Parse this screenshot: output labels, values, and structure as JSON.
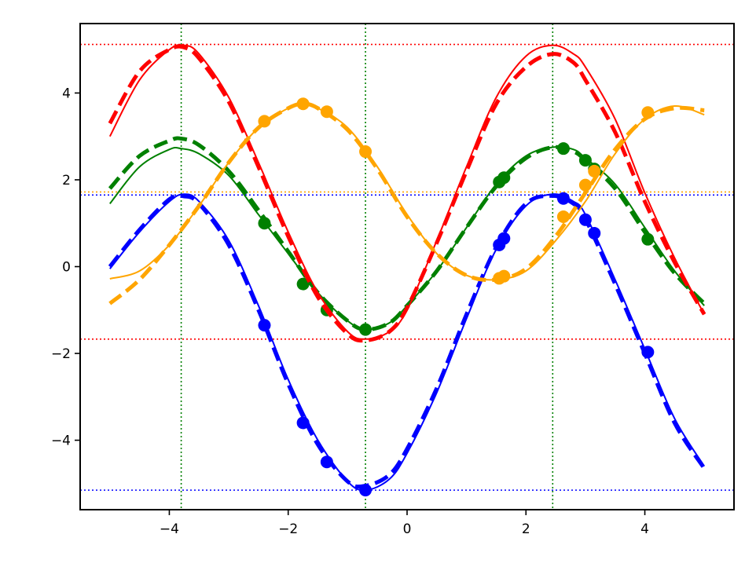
{
  "chart_data": {
    "type": "line",
    "title": "",
    "xlabel": "",
    "ylabel": "",
    "xlim": [
      -5.5,
      5.5
    ],
    "ylim": [
      -5.6,
      5.6
    ],
    "xticks": [
      -4,
      -2,
      0,
      2,
      4
    ],
    "yticks": [
      -4,
      -2,
      0,
      2,
      4
    ],
    "xtick_labels": [
      "−4",
      "−2",
      "0",
      "2",
      "4"
    ],
    "ytick_labels": [
      "−4",
      "−2",
      "0",
      "2",
      "4"
    ],
    "grid": false,
    "legend": "none",
    "curve_x_range": [
      -5,
      5
    ],
    "series": [
      {
        "color": "#0000ff",
        "smooth": [
          [
            -5.0,
            -0.05
          ],
          [
            -4.5,
            0.8
          ],
          [
            -4.0,
            1.5
          ],
          [
            -3.75,
            1.67
          ],
          [
            -3.5,
            1.5
          ],
          [
            -3.0,
            0.6
          ],
          [
            -2.5,
            -0.9
          ],
          [
            -2.0,
            -2.6
          ],
          [
            -1.5,
            -4.0
          ],
          [
            -1.0,
            -4.95
          ],
          [
            -0.7,
            -5.15
          ],
          [
            -0.3,
            -4.9
          ],
          [
            0.0,
            -4.3
          ],
          [
            0.5,
            -2.9
          ],
          [
            1.0,
            -1.2
          ],
          [
            1.5,
            0.4
          ],
          [
            2.0,
            1.4
          ],
          [
            2.45,
            1.67
          ],
          [
            2.8,
            1.5
          ],
          [
            3.0,
            1.2
          ],
          [
            3.5,
            -0.3
          ],
          [
            4.0,
            -1.9
          ],
          [
            4.5,
            -3.5
          ],
          [
            5.0,
            -4.6
          ]
        ],
        "dashed": [
          [
            -5.0,
            0.0
          ],
          [
            -4.5,
            0.85
          ],
          [
            -4.0,
            1.55
          ],
          [
            -3.75,
            1.62
          ],
          [
            -3.5,
            1.45
          ],
          [
            -3.0,
            0.5
          ],
          [
            -2.5,
            -1.0
          ],
          [
            -2.0,
            -2.7
          ],
          [
            -1.5,
            -4.1
          ],
          [
            -1.0,
            -4.95
          ],
          [
            -0.7,
            -5.05
          ],
          [
            -0.3,
            -4.8
          ],
          [
            0.0,
            -4.2
          ],
          [
            0.5,
            -2.8
          ],
          [
            1.0,
            -1.1
          ],
          [
            1.5,
            0.45
          ],
          [
            2.0,
            1.45
          ],
          [
            2.45,
            1.63
          ],
          [
            2.8,
            1.45
          ],
          [
            3.0,
            1.1
          ],
          [
            3.5,
            -0.4
          ],
          [
            4.0,
            -2.0
          ],
          [
            4.5,
            -3.6
          ],
          [
            5.0,
            -4.65
          ]
        ],
        "points": [
          [
            -2.4,
            -1.35
          ],
          [
            -1.75,
            -3.6
          ],
          [
            -1.35,
            -4.5
          ],
          [
            -0.7,
            -5.15
          ],
          [
            1.55,
            0.5
          ],
          [
            1.63,
            0.65
          ],
          [
            2.63,
            1.57
          ],
          [
            3.0,
            1.08
          ],
          [
            3.15,
            0.77
          ],
          [
            4.05,
            -1.97
          ]
        ]
      },
      {
        "color": "#008000",
        "smooth": [
          [
            -5.0,
            1.45
          ],
          [
            -4.5,
            2.3
          ],
          [
            -4.0,
            2.7
          ],
          [
            -3.8,
            2.72
          ],
          [
            -3.5,
            2.6
          ],
          [
            -3.0,
            2.1
          ],
          [
            -2.5,
            1.2
          ],
          [
            -2.0,
            0.3
          ],
          [
            -1.5,
            -0.6
          ],
          [
            -1.0,
            -1.25
          ],
          [
            -0.7,
            -1.45
          ],
          [
            -0.3,
            -1.3
          ],
          [
            0.0,
            -0.9
          ],
          [
            0.5,
            -0.1
          ],
          [
            1.0,
            0.9
          ],
          [
            1.5,
            1.9
          ],
          [
            2.0,
            2.55
          ],
          [
            2.45,
            2.75
          ],
          [
            2.8,
            2.7
          ],
          [
            3.0,
            2.5
          ],
          [
            3.5,
            1.9
          ],
          [
            4.0,
            0.9
          ],
          [
            4.5,
            -0.1
          ],
          [
            5.0,
            -0.9
          ]
        ],
        "dashed": [
          [
            -5.0,
            1.8
          ],
          [
            -4.5,
            2.55
          ],
          [
            -4.0,
            2.9
          ],
          [
            -3.8,
            2.95
          ],
          [
            -3.5,
            2.8
          ],
          [
            -3.0,
            2.2
          ],
          [
            -2.5,
            1.3
          ],
          [
            -2.0,
            0.35
          ],
          [
            -1.5,
            -0.6
          ],
          [
            -1.0,
            -1.25
          ],
          [
            -0.7,
            -1.45
          ],
          [
            -0.3,
            -1.3
          ],
          [
            0.0,
            -0.9
          ],
          [
            0.5,
            -0.1
          ],
          [
            1.0,
            0.9
          ],
          [
            1.5,
            1.85
          ],
          [
            2.0,
            2.5
          ],
          [
            2.45,
            2.75
          ],
          [
            2.8,
            2.65
          ],
          [
            3.0,
            2.45
          ],
          [
            3.5,
            1.8
          ],
          [
            4.0,
            0.8
          ],
          [
            4.5,
            -0.15
          ],
          [
            5.0,
            -0.85
          ]
        ],
        "points": [
          [
            -2.4,
            1.0
          ],
          [
            -1.75,
            -0.4
          ],
          [
            -1.35,
            -1.0
          ],
          [
            -0.7,
            -1.45
          ],
          [
            1.55,
            1.95
          ],
          [
            1.63,
            2.05
          ],
          [
            2.63,
            2.72
          ],
          [
            3.0,
            2.45
          ],
          [
            3.15,
            2.25
          ],
          [
            4.05,
            0.63
          ]
        ]
      },
      {
        "color": "#ff0000",
        "smooth": [
          [
            -5.0,
            3.0
          ],
          [
            -4.5,
            4.3
          ],
          [
            -4.0,
            5.0
          ],
          [
            -3.75,
            5.1
          ],
          [
            -3.5,
            4.9
          ],
          [
            -3.0,
            3.9
          ],
          [
            -2.5,
            2.4
          ],
          [
            -2.0,
            0.8
          ],
          [
            -1.5,
            -0.6
          ],
          [
            -1.0,
            -1.5
          ],
          [
            -0.7,
            -1.67
          ],
          [
            -0.3,
            -1.5
          ],
          [
            0.0,
            -1.0
          ],
          [
            0.5,
            0.6
          ],
          [
            1.0,
            2.3
          ],
          [
            1.5,
            3.9
          ],
          [
            2.0,
            4.85
          ],
          [
            2.45,
            5.1
          ],
          [
            2.8,
            4.9
          ],
          [
            3.0,
            4.6
          ],
          [
            3.5,
            3.4
          ],
          [
            4.0,
            1.7
          ],
          [
            4.5,
            0.2
          ],
          [
            5.0,
            -1.1
          ]
        ],
        "dashed": [
          [
            -5.0,
            3.3
          ],
          [
            -4.5,
            4.5
          ],
          [
            -4.0,
            5.0
          ],
          [
            -3.75,
            5.05
          ],
          [
            -3.5,
            4.8
          ],
          [
            -3.0,
            3.8
          ],
          [
            -2.5,
            2.3
          ],
          [
            -2.0,
            0.7
          ],
          [
            -1.5,
            -0.7
          ],
          [
            -1.0,
            -1.55
          ],
          [
            -0.7,
            -1.7
          ],
          [
            -0.3,
            -1.5
          ],
          [
            0.0,
            -0.95
          ],
          [
            0.5,
            0.55
          ],
          [
            1.0,
            2.2
          ],
          [
            1.5,
            3.75
          ],
          [
            2.0,
            4.6
          ],
          [
            2.45,
            4.9
          ],
          [
            2.8,
            4.7
          ],
          [
            3.0,
            4.3
          ],
          [
            3.5,
            3.1
          ],
          [
            4.0,
            1.5
          ],
          [
            4.5,
            0.1
          ],
          [
            5.0,
            -1.1
          ]
        ],
        "points": []
      },
      {
        "color": "#ffa500",
        "smooth": [
          [
            -5.0,
            -0.28
          ],
          [
            -4.5,
            -0.1
          ],
          [
            -4.0,
            0.5
          ],
          [
            -3.5,
            1.4
          ],
          [
            -3.0,
            2.4
          ],
          [
            -2.5,
            3.2
          ],
          [
            -2.0,
            3.65
          ],
          [
            -1.75,
            3.73
          ],
          [
            -1.5,
            3.65
          ],
          [
            -1.0,
            3.2
          ],
          [
            -0.5,
            2.3
          ],
          [
            0.0,
            1.2
          ],
          [
            0.5,
            0.3
          ],
          [
            1.0,
            -0.2
          ],
          [
            1.5,
            -0.3
          ],
          [
            2.0,
            -0.1
          ],
          [
            2.5,
            0.6
          ],
          [
            3.0,
            1.5
          ],
          [
            3.5,
            2.6
          ],
          [
            4.0,
            3.4
          ],
          [
            4.5,
            3.7
          ],
          [
            5.0,
            3.5
          ]
        ],
        "dashed": [
          [
            -5.0,
            -0.85
          ],
          [
            -4.5,
            -0.3
          ],
          [
            -4.0,
            0.5
          ],
          [
            -3.5,
            1.4
          ],
          [
            -3.0,
            2.4
          ],
          [
            -2.5,
            3.2
          ],
          [
            -2.0,
            3.65
          ],
          [
            -1.75,
            3.75
          ],
          [
            -1.5,
            3.65
          ],
          [
            -1.0,
            3.15
          ],
          [
            -0.5,
            2.25
          ],
          [
            0.0,
            1.15
          ],
          [
            0.5,
            0.3
          ],
          [
            1.0,
            -0.2
          ],
          [
            1.5,
            -0.3
          ],
          [
            2.0,
            -0.05
          ],
          [
            2.5,
            0.7
          ],
          [
            3.0,
            1.7
          ],
          [
            3.5,
            2.7
          ],
          [
            4.0,
            3.4
          ],
          [
            4.5,
            3.65
          ],
          [
            5.0,
            3.6
          ]
        ],
        "points": [
          [
            -2.4,
            3.35
          ],
          [
            -1.75,
            3.75
          ],
          [
            -1.35,
            3.57
          ],
          [
            -0.7,
            2.65
          ],
          [
            1.55,
            -0.27
          ],
          [
            1.63,
            -0.22
          ],
          [
            2.63,
            1.15
          ],
          [
            3.0,
            1.88
          ],
          [
            3.15,
            2.2
          ],
          [
            4.05,
            3.55
          ]
        ]
      }
    ],
    "horizontal_lines": [
      {
        "y": 5.12,
        "color": "#ff0000"
      },
      {
        "y": -1.67,
        "color": "#ff0000"
      },
      {
        "y": 1.72,
        "color": "#ffa500"
      },
      {
        "y": 1.65,
        "color": "#0000ff"
      },
      {
        "y": -5.15,
        "color": "#0000ff"
      }
    ],
    "vertical_lines": [
      {
        "x": -3.8,
        "color": "#008000"
      },
      {
        "x": -0.7,
        "color": "#008000"
      },
      {
        "x": 2.45,
        "color": "#008000"
      }
    ]
  }
}
